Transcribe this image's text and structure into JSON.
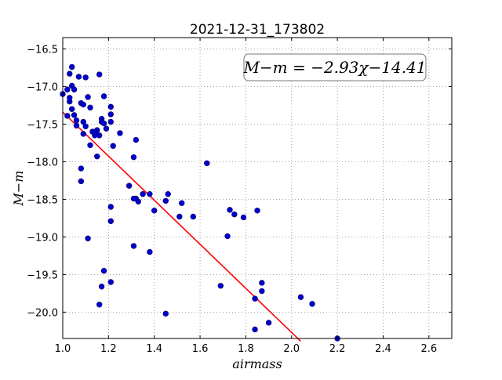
{
  "chart_data": {
    "type": "scatter",
    "title": "2021-12-31_173802",
    "xlabel": "airmass",
    "ylabel": "M−m",
    "xlim": [
      1.0,
      2.7
    ],
    "ylim": [
      -16.35,
      -20.35
    ],
    "xticks": [
      1.0,
      1.2,
      1.4,
      1.6,
      1.8,
      2.0,
      2.2,
      2.4,
      2.6
    ],
    "xtick_labels": [
      "1.0",
      "1.2",
      "1.4",
      "1.6",
      "1.8",
      "2.0",
      "2.2",
      "2.4",
      "2.6"
    ],
    "yticks": [
      -16.5,
      -17.0,
      -17.5,
      -18.0,
      -18.5,
      -19.0,
      -19.5,
      -20.0
    ],
    "ytick_labels": [
      "−16.5",
      "−17.0",
      "−17.5",
      "−18.0",
      "−18.5",
      "−19.0",
      "−19.5",
      "−20.0"
    ],
    "grid": true,
    "annotation": "M−m = −2.93χ−14.41",
    "annotation_position": "top-right",
    "colors": {
      "points": "#0000cc",
      "fit_line": "#ff0000",
      "grid": "#888888",
      "axes": "#000000"
    },
    "fit": {
      "slope": -2.93,
      "intercept": -14.41,
      "x": [
        1.0,
        2.04
      ]
    },
    "series": [
      {
        "x": [
          1.0,
          1.02,
          1.03,
          1.03,
          1.03,
          1.04,
          1.04,
          1.05,
          1.05,
          1.06,
          1.07,
          1.08,
          1.09,
          1.09,
          1.1,
          1.11,
          1.12,
          1.13,
          1.14,
          1.15,
          1.16,
          1.17,
          1.17,
          1.18,
          1.19,
          1.21,
          1.21,
          1.22,
          1.25,
          1.31,
          1.32,
          1.02,
          1.04,
          1.06,
          1.09,
          1.1,
          1.12,
          1.14,
          1.15,
          1.18,
          1.21,
          1.08,
          1.08,
          1.21,
          1.21,
          1.16,
          1.31,
          1.29,
          1.32,
          1.33,
          1.35,
          1.38,
          1.4,
          1.45,
          1.46,
          1.51,
          1.52,
          1.57,
          1.63,
          1.11,
          1.31,
          1.38,
          1.72,
          1.73,
          1.75,
          1.79,
          1.85,
          1.18,
          1.21,
          1.16,
          1.17,
          1.45,
          1.69,
          1.84,
          1.87,
          1.87,
          1.84,
          1.9,
          2.04,
          2.09,
          2.2
        ],
        "y": [
          -17.1,
          -17.04,
          -16.83,
          -17.2,
          -17.15,
          -16.99,
          -16.74,
          -17.04,
          -17.38,
          -17.45,
          -16.87,
          -17.22,
          -17.24,
          -17.47,
          -16.88,
          -17.14,
          -17.28,
          -17.6,
          -17.65,
          -17.58,
          -16.84,
          -17.43,
          -17.47,
          -17.13,
          -17.56,
          -17.27,
          -17.47,
          -17.79,
          -17.62,
          -17.94,
          -17.71,
          -17.39,
          -17.3,
          -17.52,
          -17.63,
          -17.53,
          -17.78,
          -17.61,
          -17.93,
          -17.49,
          -17.37,
          -18.09,
          -18.26,
          -18.6,
          -18.79,
          -17.65,
          -19.12,
          -18.32,
          -18.49,
          -18.53,
          -18.43,
          -18.43,
          -18.65,
          -18.52,
          -18.43,
          -18.73,
          -18.55,
          -18.73,
          -18.02,
          -19.02,
          -18.49,
          -19.2,
          -18.99,
          -18.64,
          -18.7,
          -18.74,
          -18.65,
          -19.45,
          -19.6,
          -19.9,
          -19.66,
          -20.02,
          -19.65,
          -19.82,
          -19.61,
          -19.72,
          -20.23,
          -20.14,
          -19.8,
          -19.89,
          -20.35
        ]
      }
    ]
  }
}
